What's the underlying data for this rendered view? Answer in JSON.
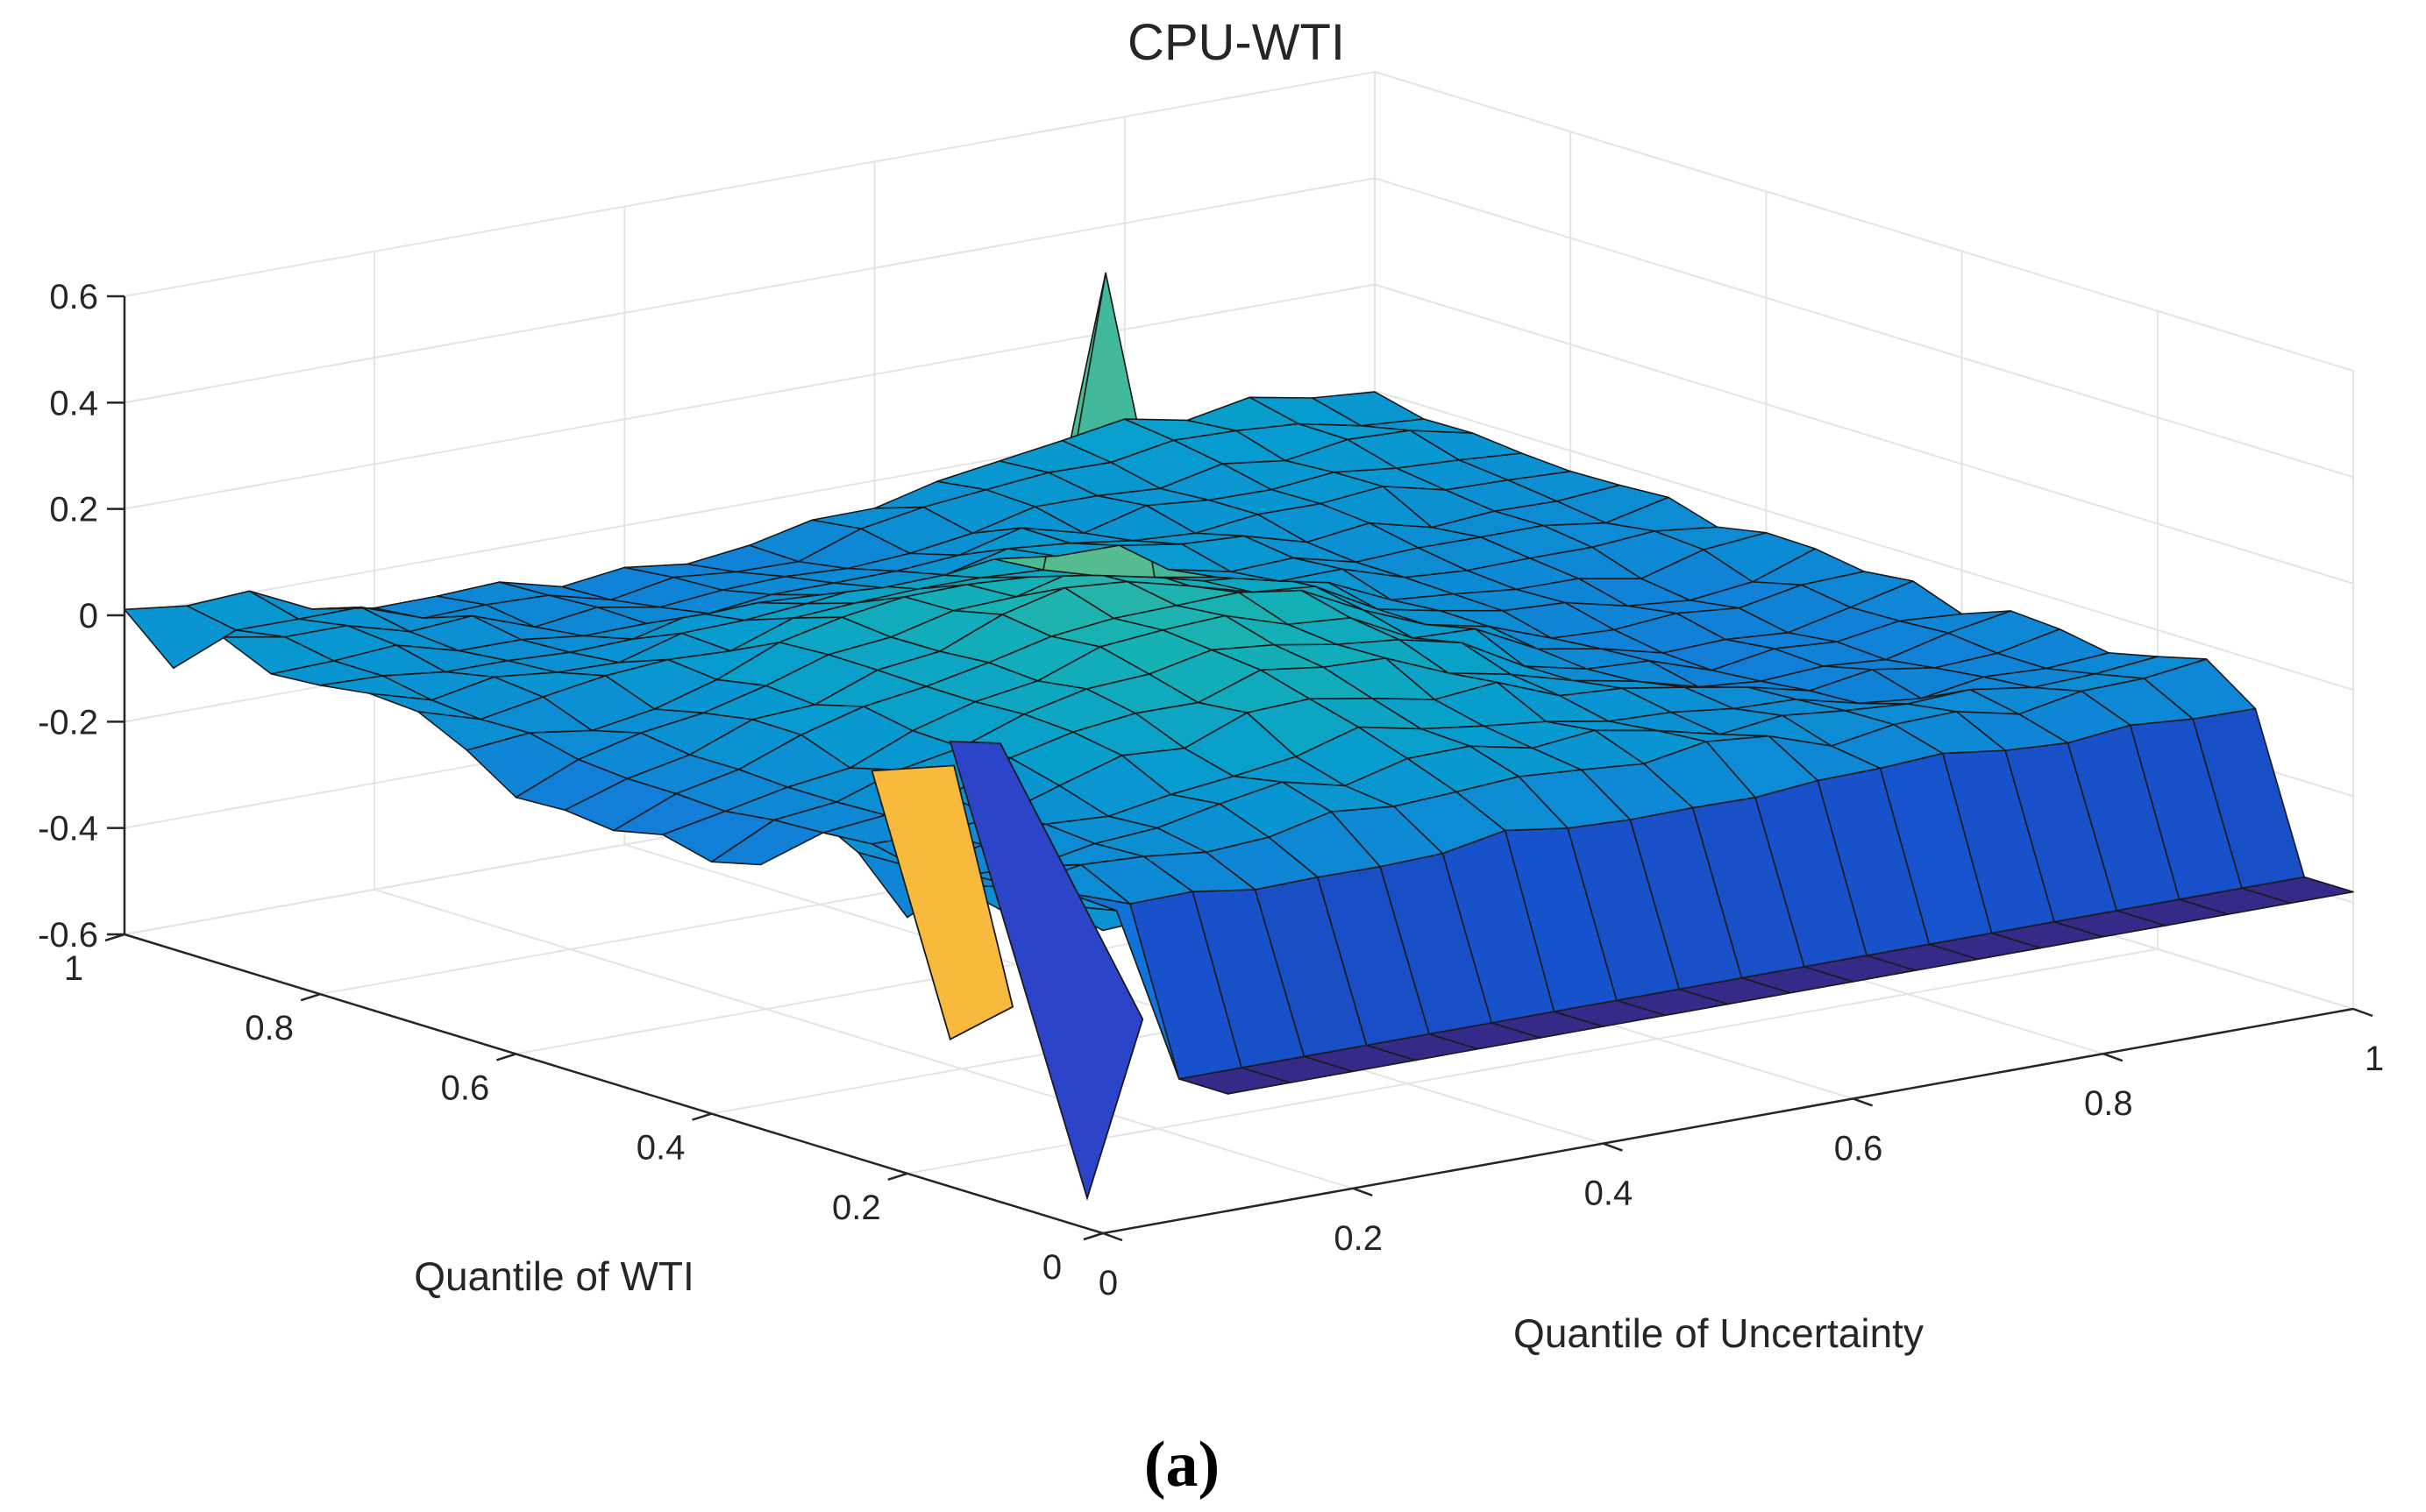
{
  "chart_data": {
    "type": "surface",
    "title": "CPU-WTI",
    "caption": "(a)",
    "xlabel": "Quantile of Uncertainty",
    "ylabel": "Quantile of WTI",
    "zlabel": "",
    "xlim": [
      0,
      1
    ],
    "ylim": [
      0,
      1
    ],
    "zlim": [
      -0.6,
      0.6
    ],
    "grid": true,
    "colormap": "parula",
    "x_ticks": [
      "0",
      "0.2",
      "0.4",
      "0.6",
      "0.8",
      "1"
    ],
    "y_ticks": [
      "0",
      "0.2",
      "0.4",
      "0.6",
      "0.8",
      "1"
    ],
    "z_ticks": [
      "-0.6",
      "-0.4",
      "-0.2",
      "0",
      "0.2",
      "0.4",
      "0.6"
    ],
    "x_ticks_rendered": [
      "0",
      "0.2",
      "0.4",
      "0.6",
      "0.8",
      "1"
    ],
    "y_ticks_rendered": [
      "0",
      "0.2",
      "0.4",
      "0.6",
      "0.8",
      "1"
    ],
    "z_ticks_rendered": [
      "-0.6",
      "-0.4",
      "-0.2",
      "0",
      "0.2",
      "0.4",
      "0.6"
    ],
    "grid_spacing": 0.05,
    "surface_summary": {
      "baseline_level": -0.05,
      "main_spike": {
        "x": 0.55,
        "y": 0.7,
        "z": 0.58
      },
      "blue_fin": {
        "x": 0.05,
        "y_from": 0.08,
        "y_to": 0.22,
        "z_min": -0.6,
        "z_max": 0.18
      },
      "orange_fin": {
        "x": 0.05,
        "y_from": 0.22,
        "y_to": 0.3,
        "z_min": -0.38,
        "z_max": 0.08
      },
      "low_wti_trough": {
        "y_range": [
          0,
          0.05
        ],
        "x_range": [
          0.1,
          1.0
        ],
        "z": -0.38
      },
      "low_wti_step": {
        "y": 0.1,
        "x_range": [
          0.1,
          1.0
        ],
        "z": -0.08
      }
    }
  }
}
